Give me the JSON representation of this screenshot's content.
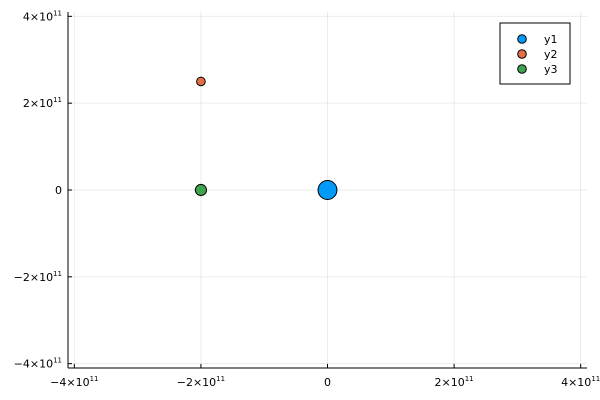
{
  "chart_data": {
    "type": "scatter",
    "title": "",
    "xlabel": "",
    "ylabel": "",
    "xlim": [
      -410000000000,
      410000000000
    ],
    "ylim": [
      -410000000000,
      410000000000
    ],
    "grid": true,
    "legend_position": "top-right",
    "x_ticks": [
      {
        "value": -400000000000,
        "base": "−4×10",
        "exp": "11"
      },
      {
        "value": -200000000000,
        "base": "−2×10",
        "exp": "11"
      },
      {
        "value": 0,
        "base": "0",
        "exp": ""
      },
      {
        "value": 200000000000,
        "base": "2×10",
        "exp": "11"
      },
      {
        "value": 400000000000,
        "base": "4×10",
        "exp": "11"
      }
    ],
    "y_ticks": [
      {
        "value": -400000000000,
        "base": "−4×10",
        "exp": "11"
      },
      {
        "value": -200000000000,
        "base": "−2×10",
        "exp": "11"
      },
      {
        "value": 0,
        "base": "0",
        "exp": ""
      },
      {
        "value": 200000000000,
        "base": "2×10",
        "exp": "11"
      },
      {
        "value": 400000000000,
        "base": "4×10",
        "exp": "11"
      }
    ],
    "series": [
      {
        "name": "y1",
        "color": "#009af9",
        "marker_scale": 2.2,
        "points": [
          {
            "x": 0,
            "y": 0
          }
        ]
      },
      {
        "name": "y2",
        "color": "#e26f46",
        "marker_scale": 1.0,
        "points": [
          {
            "x": -200000000000,
            "y": 250000000000
          }
        ]
      },
      {
        "name": "y3",
        "color": "#3ea44e",
        "marker_scale": 1.3,
        "points": [
          {
            "x": -200000000000,
            "y": 0
          }
        ]
      }
    ]
  }
}
